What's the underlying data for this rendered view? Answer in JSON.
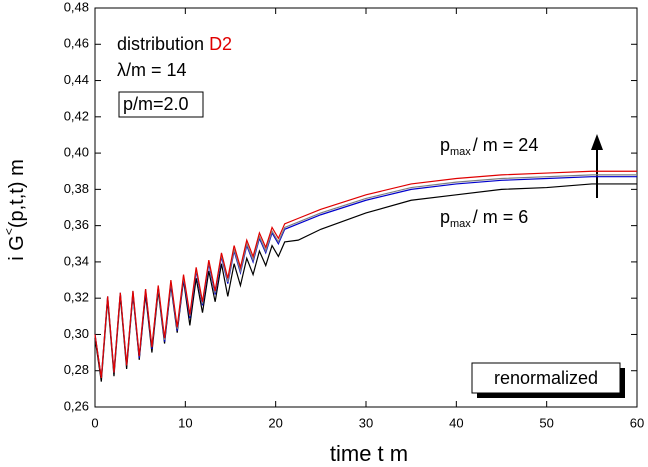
{
  "chart_data": {
    "type": "line",
    "x_label": "time  t m",
    "y_label": {
      "main": "i G",
      "sup": "<",
      "rest": "(p,t,t)  m"
    },
    "annotations": {
      "distribution": "distribution",
      "distribution_name": "D2",
      "coupling": "λ/m = 14",
      "momentum": "p/m=2.0",
      "scheme": "renormalized",
      "upper": {
        "p": "p",
        "sub": "max",
        "rest": "/ m = 24"
      },
      "lower": {
        "p": "p",
        "sub": "max",
        "rest": "/ m = 6"
      }
    },
    "x": [
      0,
      0.7,
      1.4,
      2.1,
      2.8,
      3.5,
      4.2,
      4.9,
      5.6,
      6.3,
      7.0,
      7.7,
      8.4,
      9.1,
      9.8,
      10.5,
      11.2,
      11.9,
      12.6,
      13.3,
      14.0,
      14.7,
      15.4,
      16.1,
      16.8,
      17.5,
      18.2,
      18.9,
      19.6,
      20.3,
      21.0,
      22.5,
      25,
      30,
      35,
      40,
      45,
      50,
      55,
      60
    ],
    "series": [
      {
        "color": "#000000",
        "values": [
          0.298,
          0.274,
          0.319,
          0.277,
          0.321,
          0.281,
          0.322,
          0.286,
          0.322,
          0.29,
          0.324,
          0.295,
          0.327,
          0.301,
          0.33,
          0.305,
          0.331,
          0.312,
          0.335,
          0.318,
          0.339,
          0.321,
          0.339,
          0.327,
          0.342,
          0.333,
          0.346,
          0.338,
          0.349,
          0.343,
          0.351,
          0.352,
          0.358,
          0.367,
          0.374,
          0.377,
          0.38,
          0.381,
          0.383,
          0.383
        ]
      },
      {
        "color": "#0000cc",
        "values": [
          0.3,
          0.276,
          0.321,
          0.279,
          0.323,
          0.283,
          0.323,
          0.287,
          0.324,
          0.292,
          0.326,
          0.296,
          0.328,
          0.302,
          0.331,
          0.309,
          0.335,
          0.316,
          0.339,
          0.322,
          0.343,
          0.328,
          0.346,
          0.334,
          0.349,
          0.34,
          0.353,
          0.345,
          0.356,
          0.35,
          0.358,
          0.361,
          0.366,
          0.374,
          0.38,
          0.383,
          0.385,
          0.386,
          0.387,
          0.387
        ]
      },
      {
        "color": "#808080",
        "values": [
          0.3,
          0.276,
          0.321,
          0.279,
          0.323,
          0.283,
          0.324,
          0.288,
          0.325,
          0.293,
          0.326,
          0.297,
          0.329,
          0.303,
          0.332,
          0.31,
          0.336,
          0.317,
          0.34,
          0.323,
          0.344,
          0.329,
          0.347,
          0.335,
          0.35,
          0.341,
          0.354,
          0.346,
          0.357,
          0.351,
          0.359,
          0.362,
          0.367,
          0.375,
          0.381,
          0.384,
          0.386,
          0.387,
          0.388,
          0.388
        ]
      },
      {
        "color": "#e00000",
        "values": [
          0.3,
          0.276,
          0.321,
          0.279,
          0.323,
          0.283,
          0.324,
          0.288,
          0.325,
          0.293,
          0.327,
          0.298,
          0.33,
          0.304,
          0.333,
          0.311,
          0.337,
          0.318,
          0.341,
          0.324,
          0.345,
          0.331,
          0.349,
          0.337,
          0.352,
          0.343,
          0.356,
          0.348,
          0.359,
          0.353,
          0.361,
          0.364,
          0.369,
          0.377,
          0.383,
          0.386,
          0.388,
          0.389,
          0.39,
          0.39
        ]
      }
    ],
    "xlim": [
      0,
      60
    ],
    "xticks": [
      0,
      10,
      20,
      30,
      40,
      50,
      60
    ],
    "ylim": [
      0.26,
      0.48
    ],
    "yticks": [
      {
        "value": 0.26,
        "label": "0,26"
      },
      {
        "value": 0.28,
        "label": "0,28"
      },
      {
        "value": 0.3,
        "label": "0,30"
      },
      {
        "value": 0.32,
        "label": "0,32"
      },
      {
        "value": 0.34,
        "label": "0,34"
      },
      {
        "value": 0.36,
        "label": "0,36"
      },
      {
        "value": 0.38,
        "label": "0,38"
      },
      {
        "value": 0.4,
        "label": "0,40"
      },
      {
        "value": 0.42,
        "label": "0,42"
      },
      {
        "value": 0.44,
        "label": "0,44"
      },
      {
        "value": 0.46,
        "label": "0,46"
      },
      {
        "value": 0.48,
        "label": "0,48"
      }
    ],
    "grid": false
  }
}
